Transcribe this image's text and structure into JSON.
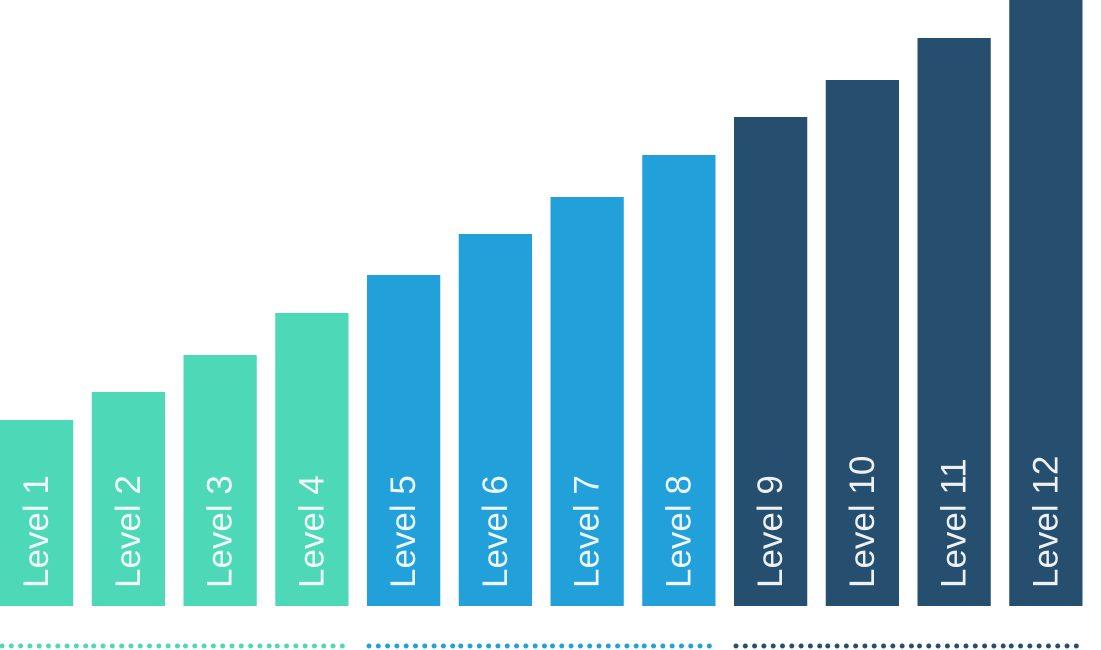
{
  "chart_data": {
    "type": "bar",
    "categories": [
      "Level 1",
      "Level 2",
      "Level 3",
      "Level 4",
      "Level 5",
      "Level 6",
      "Level 7",
      "Level 8",
      "Level 9",
      "Level 10",
      "Level 11",
      "Level 12"
    ],
    "values": [
      186,
      214,
      251,
      293,
      331,
      372,
      409,
      451,
      489,
      526,
      568,
      606
    ],
    "colors": [
      "#4dd9b8",
      "#4dd9b8",
      "#4dd9b8",
      "#4dd9b8",
      "#21a0d9",
      "#21a0d9",
      "#21a0d9",
      "#21a0d9",
      "#264f6f",
      "#264f6f",
      "#264f6f",
      "#264f6f"
    ],
    "ylim": [
      0,
      606
    ]
  }
}
